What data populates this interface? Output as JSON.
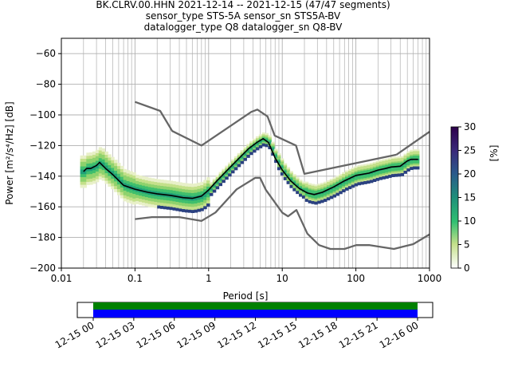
{
  "title_lines": [
    "BK.CLRV.00.HHN   2021-12-14 -- 2021-12-15  (47/47 segments)",
    "sensor_type STS-5A sensor_sn STS5A-BV",
    "datalogger_type Q8 datalogger_sn Q8-BV"
  ],
  "chart_data": [
    {
      "type": "heatmap",
      "title": "BK.CLRV.00.HHN   2021-12-14 -- 2021-12-15  (47/47 segments)",
      "xlabel": "Period [s]",
      "ylabel": "Power [m²/s⁴/Hz] [dB]",
      "xscale": "log",
      "xlim": [
        0.01,
        1000
      ],
      "ylim": [
        -200,
        -50
      ],
      "x_ticks": [
        0.01,
        0.1,
        1,
        10,
        100,
        1000
      ],
      "x_tick_labels": [
        "0.01",
        "0.1",
        "1",
        "10",
        "100",
        "1000"
      ],
      "y_ticks": [
        -200,
        -180,
        -160,
        -140,
        -120,
        -100,
        -80,
        -60
      ],
      "y_tick_labels": [
        "−200",
        "−180",
        "−160",
        "−140",
        "−120",
        "−100",
        "−80",
        "−60"
      ],
      "grid": true,
      "colorbar": {
        "label": "[%]",
        "ticks": [
          0,
          5,
          10,
          15,
          20,
          25,
          30
        ],
        "range": [
          0,
          30
        ],
        "colormap": "cubehelix-like (white-green-blue-purple)"
      },
      "series": [
        {
          "name": "",
          "kind": "mean PSD",
          "color": "#000000",
          "x": [
            0.02,
            0.022,
            0.025,
            0.03,
            0.033,
            0.04,
            0.05,
            0.07,
            0.1,
            0.15,
            0.2,
            0.3,
            0.45,
            0.6,
            0.8,
            1.0,
            1.3,
            1.8,
            2.5,
            3.5,
            4.5,
            5.5,
            6.5,
            8,
            10,
            13,
            17,
            22,
            27,
            35,
            50,
            70,
            100,
            150,
            200,
            250,
            300,
            400,
            500,
            560,
            700
          ],
          "y": [
            -137,
            -135,
            -135,
            -133,
            -131,
            -135,
            -139,
            -146,
            -148.5,
            -150.5,
            -151.5,
            -152.5,
            -154,
            -154.5,
            -153,
            -149,
            -143,
            -136,
            -129,
            -122,
            -118,
            -115.5,
            -118,
            -128,
            -136,
            -143,
            -148,
            -151,
            -152,
            -150.5,
            -147,
            -143,
            -139.5,
            -138,
            -136,
            -135,
            -134,
            -133.5,
            -130,
            -129,
            -129
          ]
        },
        {
          "name": "",
          "kind": "NHNM",
          "color": "#666666",
          "x": [
            0.1,
            0.22,
            0.32,
            0.8,
            3.8,
            4.6,
            6.3,
            7.9,
            15.4,
            20,
            354.8
          ],
          "y": [
            -91.5,
            -97.4,
            -110.5,
            -120,
            -98,
            -96.5,
            -101,
            -113.5,
            -120,
            -138.5,
            -126
          ]
        },
        {
          "name": "",
          "kind": "NHNM long-period limb",
          "color": "#666666",
          "x": [
            354.8,
            1000
          ],
          "y": [
            -126,
            -111
          ]
        },
        {
          "name": "",
          "kind": "NLNM",
          "color": "#666666",
          "x": [
            0.1,
            0.17,
            0.4,
            0.8,
            1.24,
            2.4,
            4.3,
            5,
            6,
            10,
            12,
            15.6,
            21.9,
            31.6,
            45,
            70,
            101,
            154,
            328,
            600,
            1000
          ],
          "y": [
            -168,
            -166.7,
            -166.7,
            -169.2,
            -163.7,
            -148.6,
            -141.1,
            -141.1,
            -149,
            -163.8,
            -166.2,
            -162.1,
            -177.5,
            -185,
            -187.5,
            -187.5,
            -185,
            -185,
            -187.5,
            -184.4,
            -178
          ]
        }
      ],
      "annotations": []
    },
    {
      "type": "bar",
      "kind": "data coverage timeline",
      "x_tick_labels": [
        "12-15 00",
        "12-15 03",
        "12-15 06",
        "12-15 09",
        "12-15 12",
        "12-15 15",
        "12-15 18",
        "12-15 21",
        "12-16 00"
      ],
      "series": [
        {
          "name": "",
          "kind": "data availability",
          "color": "#008000",
          "coverage_percent": 100
        },
        {
          "name": "",
          "kind": "PSD segments used",
          "color": "#0000ff",
          "coverage_percent": 100
        }
      ]
    }
  ]
}
